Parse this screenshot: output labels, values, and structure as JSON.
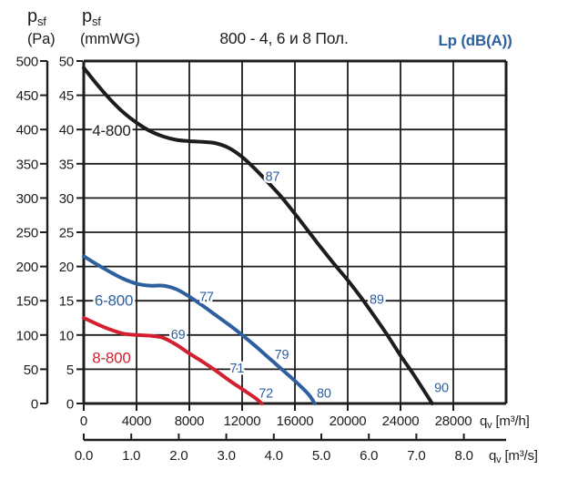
{
  "chart_data": {
    "type": "line",
    "title": "800 - 4, 6 и 8 Пол.",
    "sound_scale_label": {
      "text": "Lp (dB(A))",
      "color": "#2e5f9e"
    },
    "axis_color": "#1d1d1b",
    "grid": true,
    "y_axis_pa": {
      "sym": "p",
      "sub": "sf",
      "unit": "(Pa)",
      "range": [
        0,
        500
      ],
      "tick_step": 50,
      "ticks": [
        500,
        450,
        400,
        350,
        300,
        250,
        200,
        150,
        100,
        50,
        0
      ]
    },
    "y_axis_mmwg": {
      "sym": "p",
      "sub": "sf",
      "unit": "(mmWG)",
      "range": [
        0,
        50
      ],
      "tick_step": 5,
      "ticks": [
        50,
        45,
        40,
        35,
        30,
        25,
        20,
        15,
        10,
        5,
        0
      ]
    },
    "x_axis_m3h": {
      "sym": "q",
      "sub": "v",
      "unit": "[m³/h]",
      "range": [
        0,
        32000
      ],
      "grid_step": 4000,
      "ticks": [
        0,
        4000,
        8000,
        12000,
        16000,
        20000,
        24000,
        28000
      ]
    },
    "x_axis_m3s": {
      "sym": "q",
      "sub": "v",
      "unit": "[m³/s]",
      "range": [
        0,
        8
      ],
      "tick_step": 1,
      "ticks": [
        "0.0",
        "1.0",
        "2.0",
        "3.0",
        "4.0",
        "5.0",
        "6.0",
        "7.0",
        "8.0"
      ],
      "m3h_per_unit": 3600
    },
    "sound_label_color": "#2e5f9e",
    "series": [
      {
        "name": "4-800",
        "color": "#1d1d1b",
        "name_label_pos": {
          "x": 2100,
          "y": 39.9
        },
        "points_m3h_mmwg": [
          [
            0,
            49
          ],
          [
            1000,
            46.6
          ],
          [
            2000,
            44.4
          ],
          [
            3000,
            42.5
          ],
          [
            4000,
            41
          ],
          [
            5000,
            39.8
          ],
          [
            6000,
            39
          ],
          [
            7000,
            38.5
          ],
          [
            8000,
            38.3
          ],
          [
            9000,
            38.2
          ],
          [
            10000,
            38
          ],
          [
            11000,
            37.3
          ],
          [
            12000,
            36
          ],
          [
            13000,
            34.2
          ],
          [
            14000,
            32.2
          ],
          [
            15000,
            30.1
          ],
          [
            16000,
            27.7
          ],
          [
            17000,
            25.2
          ],
          [
            18000,
            22.7
          ],
          [
            19000,
            20.3
          ],
          [
            20000,
            18
          ],
          [
            21000,
            15.5
          ],
          [
            22000,
            12.8
          ],
          [
            23000,
            10
          ],
          [
            24000,
            7
          ],
          [
            25000,
            4.2
          ],
          [
            26400,
            0
          ]
        ],
        "sound_labels": [
          {
            "text": "87",
            "x": 14300,
            "y": 33.2
          },
          {
            "text": "89",
            "x": 22200,
            "y": 15.2
          },
          {
            "text": "90",
            "x": 27100,
            "y": 2.3
          }
        ]
      },
      {
        "name": "6-800",
        "color": "#2e5f9e",
        "name_label_pos": {
          "x": 2280,
          "y": 15.1
        },
        "points_m3h_mmwg": [
          [
            0,
            21.5
          ],
          [
            1000,
            20.3
          ],
          [
            2000,
            19.2
          ],
          [
            3000,
            18.2
          ],
          [
            4000,
            17.5
          ],
          [
            5000,
            17.2
          ],
          [
            6000,
            17.2
          ],
          [
            7000,
            16.7
          ],
          [
            8000,
            15.6
          ],
          [
            9000,
            14.3
          ],
          [
            10000,
            12.9
          ],
          [
            11000,
            11.5
          ],
          [
            12000,
            10
          ],
          [
            13000,
            8.4
          ],
          [
            14000,
            6.7
          ],
          [
            15000,
            5
          ],
          [
            16000,
            3.3
          ],
          [
            17000,
            1.4
          ],
          [
            17500,
            0
          ]
        ],
        "sound_labels": [
          {
            "text": "77",
            "x": 9300,
            "y": 15.6
          },
          {
            "text": "79",
            "x": 15000,
            "y": 7.2
          },
          {
            "text": "80",
            "x": 18200,
            "y": 1.5
          }
        ]
      },
      {
        "name": "8-800",
        "color": "#d22030",
        "name_label_pos": {
          "x": 2100,
          "y": 6.7
        },
        "points_m3h_mmwg": [
          [
            0,
            12.5
          ],
          [
            1000,
            11.6
          ],
          [
            2000,
            10.8
          ],
          [
            3000,
            10.2
          ],
          [
            4000,
            10
          ],
          [
            5000,
            9.9
          ],
          [
            6000,
            9.6
          ],
          [
            7000,
            8.6
          ],
          [
            8000,
            7.3
          ],
          [
            9000,
            6.1
          ],
          [
            10000,
            4.8
          ],
          [
            11000,
            3.4
          ],
          [
            12000,
            2.1
          ],
          [
            13000,
            0.8
          ],
          [
            13500,
            0
          ]
        ],
        "sound_labels": [
          {
            "text": "69",
            "x": 7150,
            "y": 10.1
          },
          {
            "text": "71",
            "x": 11600,
            "y": 5.2
          },
          {
            "text": "72",
            "x": 13800,
            "y": 1.5
          }
        ]
      }
    ]
  }
}
